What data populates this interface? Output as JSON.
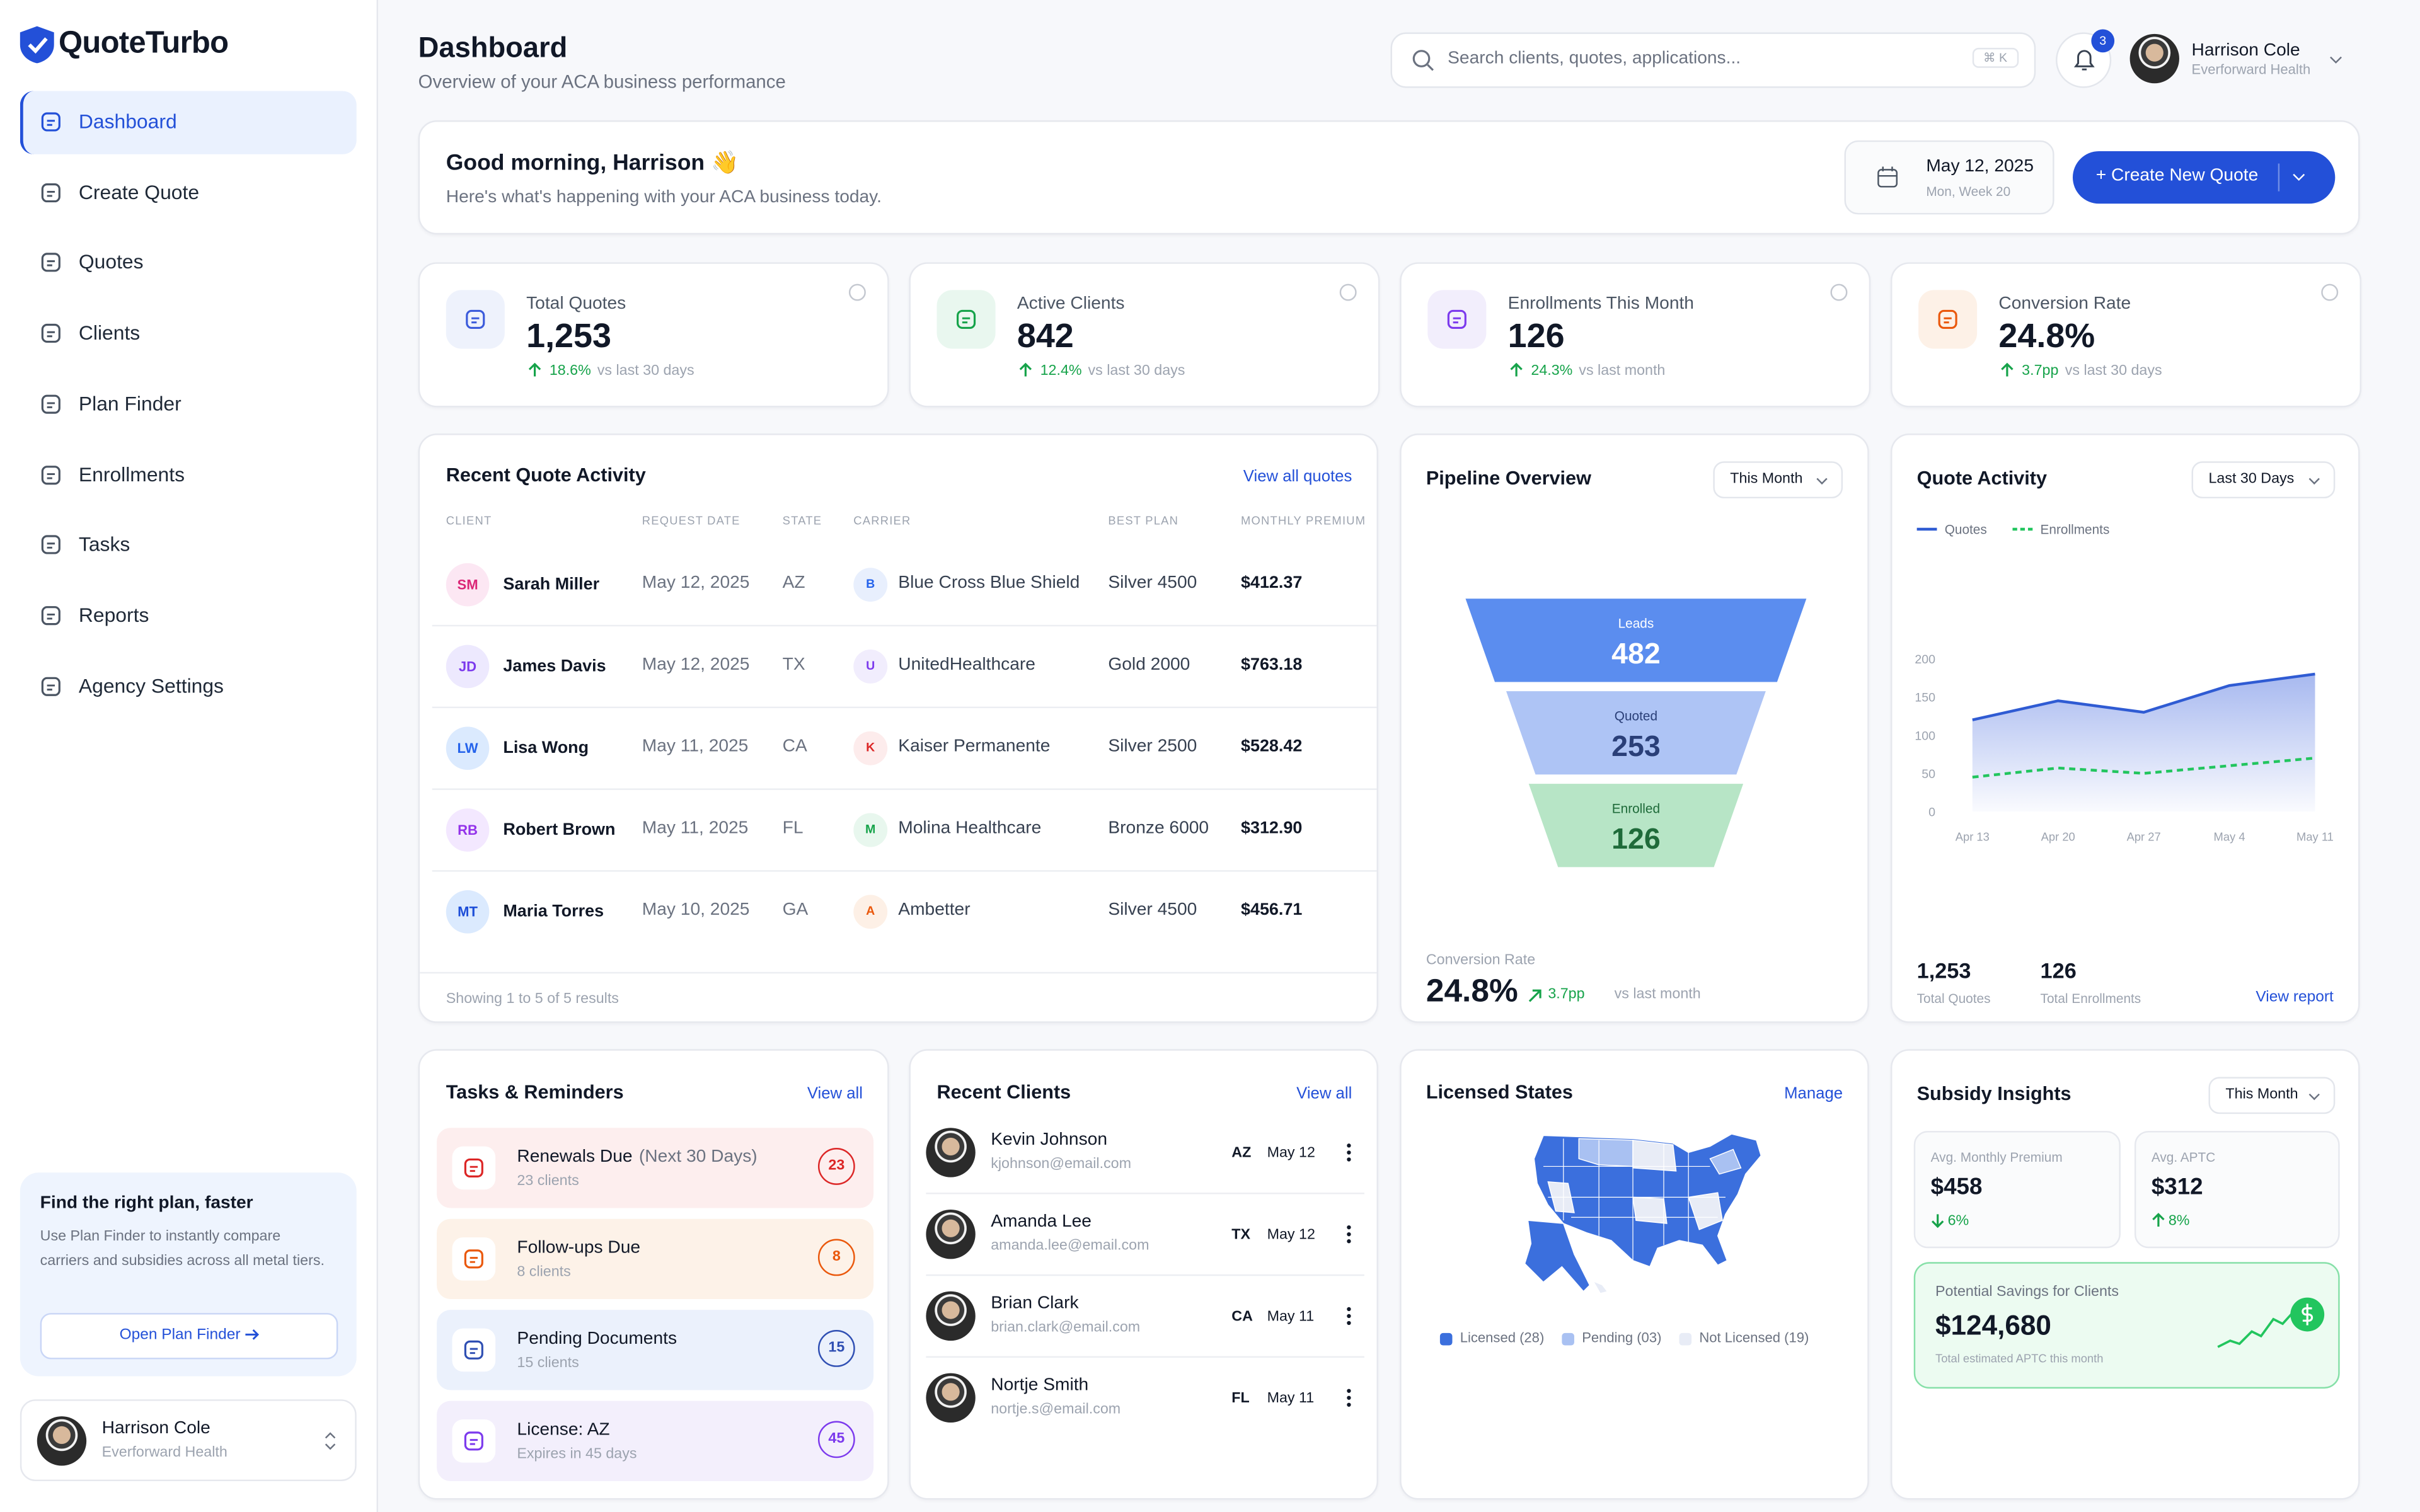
{
  "sidebar": {
    "brand": "QuoteTurbo",
    "nav": [
      "Dashboard",
      "Create Quote",
      "Quotes",
      "Clients",
      "Plan Finder",
      "Enrollments",
      "Tasks",
      "Reports",
      "Agency Settings"
    ],
    "promo": {
      "title": "Find the right plan, faster",
      "text": "Use Plan Finder to instantly compare carriers and subsidies across all metal tiers.",
      "button": "Open Plan Finder"
    },
    "user": {
      "name": "Harrison Cole",
      "org": "Everforward Health"
    }
  },
  "header": {
    "title": "Dashboard",
    "subtitle": "Overview of your ACA business performance",
    "search": "Search clients, quotes, applications...",
    "shortcut": "⌘ K",
    "notifications": 3,
    "user": {
      "name": "Harrison Cole",
      "org": "Everforward Health"
    }
  },
  "greeting": {
    "title": "Good morning, Harrison 👋",
    "text": "Here's what's happening with your ACA business today.",
    "date": "May 12, 2025",
    "week": "Mon, Week 20",
    "button": "+ Create New Quote"
  },
  "kpis": [
    {
      "label": "Total Quotes",
      "value": "1,253",
      "change": "18.6%",
      "note": "vs last 30 days",
      "color": "#3b5bdb",
      "bg": "#eef2fc"
    },
    {
      "label": "Active Clients",
      "value": "842",
      "change": "12.4%",
      "note": "vs last 30 days",
      "color": "#16a34a",
      "bg": "#e9f7ef"
    },
    {
      "label": "Enrollments This Month",
      "value": "126",
      "change": "24.3%",
      "note": "vs last month",
      "color": "#7c3aed",
      "bg": "#f2eefc"
    },
    {
      "label": "Conversion Rate",
      "value": "24.8%",
      "change": "3.7pp",
      "note": "vs last 30 days",
      "color": "#ea580c",
      "bg": "#fdf1e7"
    }
  ],
  "recent_quotes": {
    "title": "Recent Quote Activity",
    "link": "View all quotes",
    "columns": [
      "CLIENT",
      "REQUEST DATE",
      "STATE",
      "CARRIER",
      "BEST PLAN",
      "MONTHLY PREMIUM"
    ],
    "rows": [
      {
        "initials": "SM",
        "name": "Sarah Miller",
        "date": "May 12, 2025",
        "state": "AZ",
        "carrier_initial": "B",
        "carrier": "Blue Cross Blue Shield",
        "plan": "Silver 4500",
        "premium": "$412.37",
        "color": "#db2777",
        "bg": "#fce7f3",
        "carrier_color": "#2563eb",
        "carrier_bg": "#e8effd"
      },
      {
        "initials": "JD",
        "name": "James Davis",
        "date": "May 12, 2025",
        "state": "TX",
        "carrier_initial": "U",
        "carrier": "UnitedHealthcare",
        "plan": "Gold 2000",
        "premium": "$763.18",
        "color": "#7c3aed",
        "bg": "#ede9fe",
        "carrier_color": "#7c3aed",
        "carrier_bg": "#f1edfd"
      },
      {
        "initials": "LW",
        "name": "Lisa Wong",
        "date": "May 11, 2025",
        "state": "CA",
        "carrier_initial": "K",
        "carrier": "Kaiser Permanente",
        "plan": "Silver 2500",
        "premium": "$528.42",
        "color": "#2563eb",
        "bg": "#dbeafe",
        "carrier_color": "#dc2626",
        "carrier_bg": "#fdecec"
      },
      {
        "initials": "RB",
        "name": "Robert Brown",
        "date": "May 11, 2025",
        "state": "FL",
        "carrier_initial": "M",
        "carrier": "Molina Healthcare",
        "plan": "Bronze 6000",
        "premium": "$312.90",
        "color": "#9333ea",
        "bg": "#f3e8ff",
        "carrier_color": "#16a34a",
        "carrier_bg": "#e8f7ee"
      },
      {
        "initials": "MT",
        "name": "Maria Torres",
        "date": "May 10, 2025",
        "state": "GA",
        "carrier_initial": "A",
        "carrier": "Ambetter",
        "plan": "Silver 4500",
        "premium": "$456.71",
        "color": "#1d4ed8",
        "bg": "#dbeafe",
        "carrier_color": "#ea580c",
        "carrier_bg": "#fdf0e6"
      }
    ],
    "footer": "Showing 1 to 5 of 5 results"
  },
  "pipeline": {
    "title": "Pipeline Overview",
    "filter": "This Month",
    "chart_data": {
      "type": "funnel",
      "categories": [
        "Leads",
        "Quoted",
        "Enrolled"
      ],
      "values": [
        482,
        253,
        126
      ],
      "colors": [
        "#5b8def",
        "#aec4f5",
        "#b7e5c6"
      ],
      "label_colors": [
        "#ffffff",
        "#2a3f78",
        "#1f6b3a"
      ]
    },
    "conversion_label": "Conversion Rate",
    "conversion_value": "24.8%",
    "conversion_change": "3.7pp",
    "conversion_note": "vs last month"
  },
  "quote_activity": {
    "title": "Quote Activity",
    "filter": "Last 30 Days",
    "chart_data": {
      "type": "line",
      "x": [
        "Apr 13",
        "Apr 20",
        "Apr 27",
        "May 4",
        "May 11"
      ],
      "series": [
        {
          "name": "Quotes",
          "color": "#2f5bd3",
          "values": [
            120,
            145,
            130,
            165,
            180
          ]
        },
        {
          "name": "Enrollments",
          "color": "#22c55e",
          "dashed": true,
          "values": [
            45,
            57,
            50,
            60,
            70
          ]
        }
      ],
      "ylim": [
        0,
        200
      ],
      "yticks": [
        0,
        50,
        100,
        150,
        200
      ]
    },
    "stats": [
      {
        "value": "1,253",
        "label": "Total Quotes"
      },
      {
        "value": "126",
        "label": "Total Enrollments"
      }
    ],
    "link": "View report"
  },
  "tasks": {
    "title": "Tasks & Reminders",
    "link": "View all",
    "items": [
      {
        "title": "Renewals Due",
        "detail": "(Next 30 Days)",
        "sub": "23 clients",
        "count": 23,
        "color": "#dc2626",
        "bg": "#fdeeee"
      },
      {
        "title": "Follow-ups Due",
        "sub": "8 clients",
        "count": 8,
        "color": "#ea580c",
        "bg": "#fdf2e8"
      },
      {
        "title": "Pending Documents",
        "sub": "15 clients",
        "count": 15,
        "color": "#2f4fb3",
        "bg": "#ebf1fc"
      },
      {
        "title": "License: AZ",
        "sub": "Expires in 45 days",
        "count": 45,
        "color": "#7c3aed",
        "bg": "#f3effc"
      }
    ]
  },
  "recent_clients": {
    "title": "Recent Clients",
    "link": "View all",
    "items": [
      {
        "name": "Kevin Johnson",
        "email": "kjohnson@email.com",
        "state": "AZ",
        "date": "May 12"
      },
      {
        "name": "Amanda Lee",
        "email": "amanda.lee@email.com",
        "state": "TX",
        "date": "May 12"
      },
      {
        "name": "Brian Clark",
        "email": "brian.clark@email.com",
        "state": "CA",
        "date": "May 11"
      },
      {
        "name": "Nortje Smith",
        "email": "nortje.s@email.com",
        "state": "FL",
        "date": "May 11"
      }
    ]
  },
  "licensed_states": {
    "title": "Licensed States",
    "link": "Manage",
    "legend": [
      {
        "label": "Licensed (28)",
        "color": "#3b6fdd"
      },
      {
        "label": "Pending (03)",
        "color": "#a9c1f2"
      },
      {
        "label": "Not Licensed (19)",
        "color": "#e8ecf6"
      }
    ]
  },
  "subsidy": {
    "title": "Subsidy Insights",
    "filter": "This Month",
    "cards": [
      {
        "label": "Avg. Monthly Premium",
        "value": "$458",
        "change": "6%",
        "direction": "down"
      },
      {
        "label": "Avg. APTC",
        "value": "$312",
        "change": "8%",
        "direction": "up"
      }
    ],
    "savings": {
      "label": "Potential Savings for Clients",
      "value": "$124,680",
      "note": "Total estimated APTC this month"
    }
  }
}
